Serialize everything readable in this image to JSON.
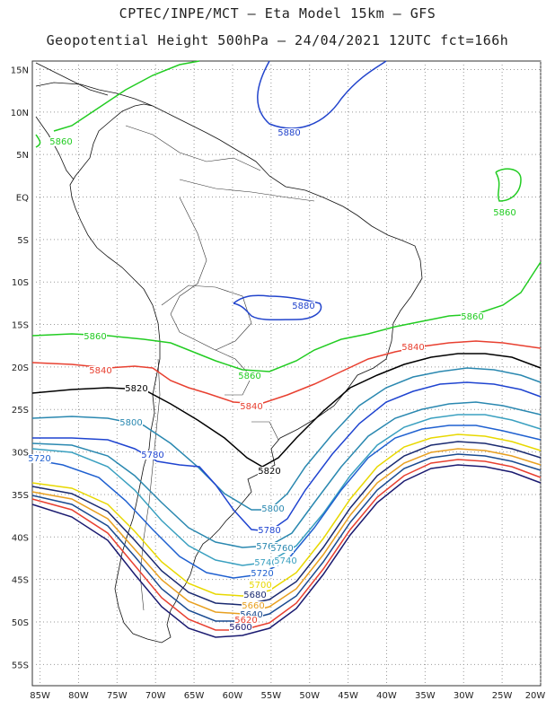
{
  "header": {
    "line1": "CPTEC/INPE/MCT –  Eta Model 15km – GFS",
    "line2": "Geopotential Height 500hPa – 24/04/2021 12UTC fct=166h"
  },
  "map": {
    "lat_range": [
      -57.5,
      16
    ],
    "lon_range": [
      -86,
      -20
    ],
    "lat_ticks": [
      "15N",
      "10N",
      "5N",
      "EQ",
      "5S",
      "10S",
      "15S",
      "20S",
      "25S",
      "30S",
      "35S",
      "40S",
      "45S",
      "50S",
      "55S"
    ],
    "lon_ticks": [
      "85W",
      "80W",
      "75W",
      "70W",
      "65W",
      "60W",
      "55W",
      "50W",
      "45W",
      "40W",
      "35W",
      "30W",
      "25W",
      "20W"
    ],
    "contour_labels": [
      {
        "text": "5880",
        "color": "#2244cc"
      },
      {
        "text": "5860",
        "color": "#22cc22"
      },
      {
        "text": "5860",
        "color": "#22cc22"
      },
      {
        "text": "5880",
        "color": "#2244cc"
      },
      {
        "text": "5860",
        "color": "#22cc22"
      },
      {
        "text": "5860",
        "color": "#22cc22"
      },
      {
        "text": "5860",
        "color": "#22cc22"
      },
      {
        "text": "5840",
        "color": "#e84030"
      },
      {
        "text": "5840",
        "color": "#e84030"
      },
      {
        "text": "5840",
        "color": "#e84030"
      },
      {
        "text": "5820",
        "color": "#000000"
      },
      {
        "text": "5820",
        "color": "#000000"
      },
      {
        "text": "5800",
        "color": "#2a88b0"
      },
      {
        "text": "5800",
        "color": "#2a88b0"
      },
      {
        "text": "5780",
        "color": "#1f44d0"
      },
      {
        "text": "5780",
        "color": "#1f44d0"
      },
      {
        "text": "5760",
        "color": "#2a88b0"
      },
      {
        "text": "5760",
        "color": "#2a88b0"
      },
      {
        "text": "5740",
        "color": "#3aa0c0"
      },
      {
        "text": "5740",
        "color": "#3aa0c0"
      },
      {
        "text": "5720",
        "color": "#1f60d0"
      },
      {
        "text": "5720",
        "color": "#1f60d0"
      },
      {
        "text": "5700",
        "color": "#e8d800"
      },
      {
        "text": "5680",
        "color": "#1a2a70"
      },
      {
        "text": "5660",
        "color": "#e8a020"
      },
      {
        "text": "5640",
        "color": "#1a4a90"
      },
      {
        "text": "5620",
        "color": "#e84030"
      },
      {
        "text": "5600",
        "color": "#1a1a70"
      }
    ]
  }
}
